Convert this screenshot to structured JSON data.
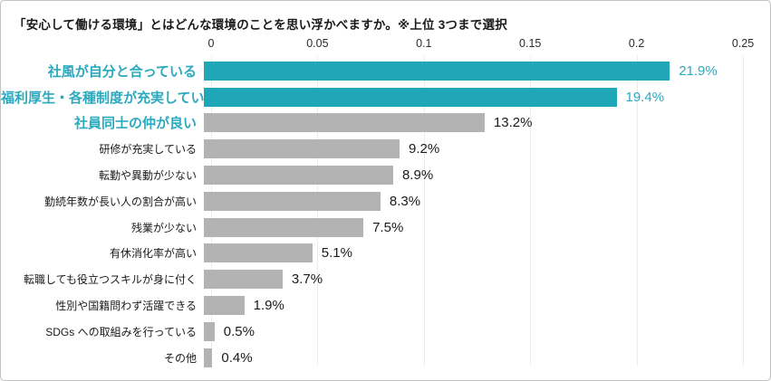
{
  "title": "「安心して働ける環境」とはどんな環境のことを思い浮かべますか。※上位 3つまで選択",
  "colors": {
    "highlight_bar": "#1fa6b7",
    "highlight_text": "#2ba9be",
    "default_bar": "#b3b3b3",
    "text": "#1a1a1a",
    "gridline": "#ececec"
  },
  "chart_data": {
    "type": "bar",
    "orientation": "horizontal",
    "title": "「安心して働ける環境」とはどんな環境のことを思い浮かべますか。※上位 3つまで選択",
    "categories": [
      "社風が自分と合っている",
      "福利厚生・各種制度が充実している",
      "社員同士の仲が良い",
      "研修が充実している",
      "転勤や異動が少ない",
      "勤続年数が長い人の割合が高い",
      "残業が少ない",
      "有休消化率が高い",
      "転職しても役立つスキルが身に付く",
      "性別や国籍問わず活躍できる",
      "SDGs への取組みを行っている",
      "その他"
    ],
    "values": [
      0.219,
      0.194,
      0.132,
      0.092,
      0.089,
      0.083,
      0.075,
      0.051,
      0.037,
      0.019,
      0.005,
      0.004
    ],
    "value_labels": [
      "21.9%",
      "19.4%",
      "13.2%",
      "9.2%",
      "8.9%",
      "8.3%",
      "7.5%",
      "5.1%",
      "3.7%",
      "1.9%",
      "0.5%",
      "0.4%"
    ],
    "xlabel": "",
    "ylabel": "",
    "xlim": [
      0,
      0.25
    ],
    "x_ticks": [
      "0",
      "0.05",
      "0.1",
      "0.15",
      "0.2",
      "0.25"
    ],
    "x_tick_values": [
      0,
      0.05,
      0.1,
      0.15,
      0.2,
      0.25
    ],
    "grid": "vertical",
    "legend": "none",
    "highlighted_bars": [
      0,
      1
    ],
    "highlighted_value_labels": [
      0,
      1
    ],
    "highlighted_category_labels": [
      0,
      1,
      2
    ]
  }
}
